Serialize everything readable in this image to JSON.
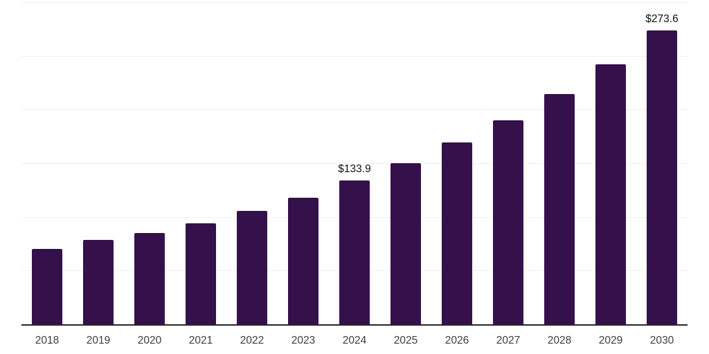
{
  "chart_data": {
    "type": "bar",
    "title": "",
    "xlabel": "",
    "ylabel": "",
    "categories": [
      "2018",
      "2019",
      "2020",
      "2021",
      "2022",
      "2023",
      "2024",
      "2025",
      "2026",
      "2027",
      "2028",
      "2029",
      "2030"
    ],
    "values": [
      70.4,
      78.8,
      85.2,
      93.9,
      105.9,
      117.9,
      133.9,
      149.7,
      169.1,
      189.8,
      214.5,
      242.1,
      273.6
    ],
    "data_labels": {
      "2024": "$133.9",
      "2030": "$273.6"
    },
    "ylim": [
      0,
      300
    ],
    "gridline_step": 50,
    "grid": true,
    "legend": false,
    "bar_color": "#35114B",
    "gridline_color": "#F0F0F0",
    "axis_color": "#262626",
    "tick_label_color": "#3D3D3D",
    "data_label_color": "#111111"
  }
}
